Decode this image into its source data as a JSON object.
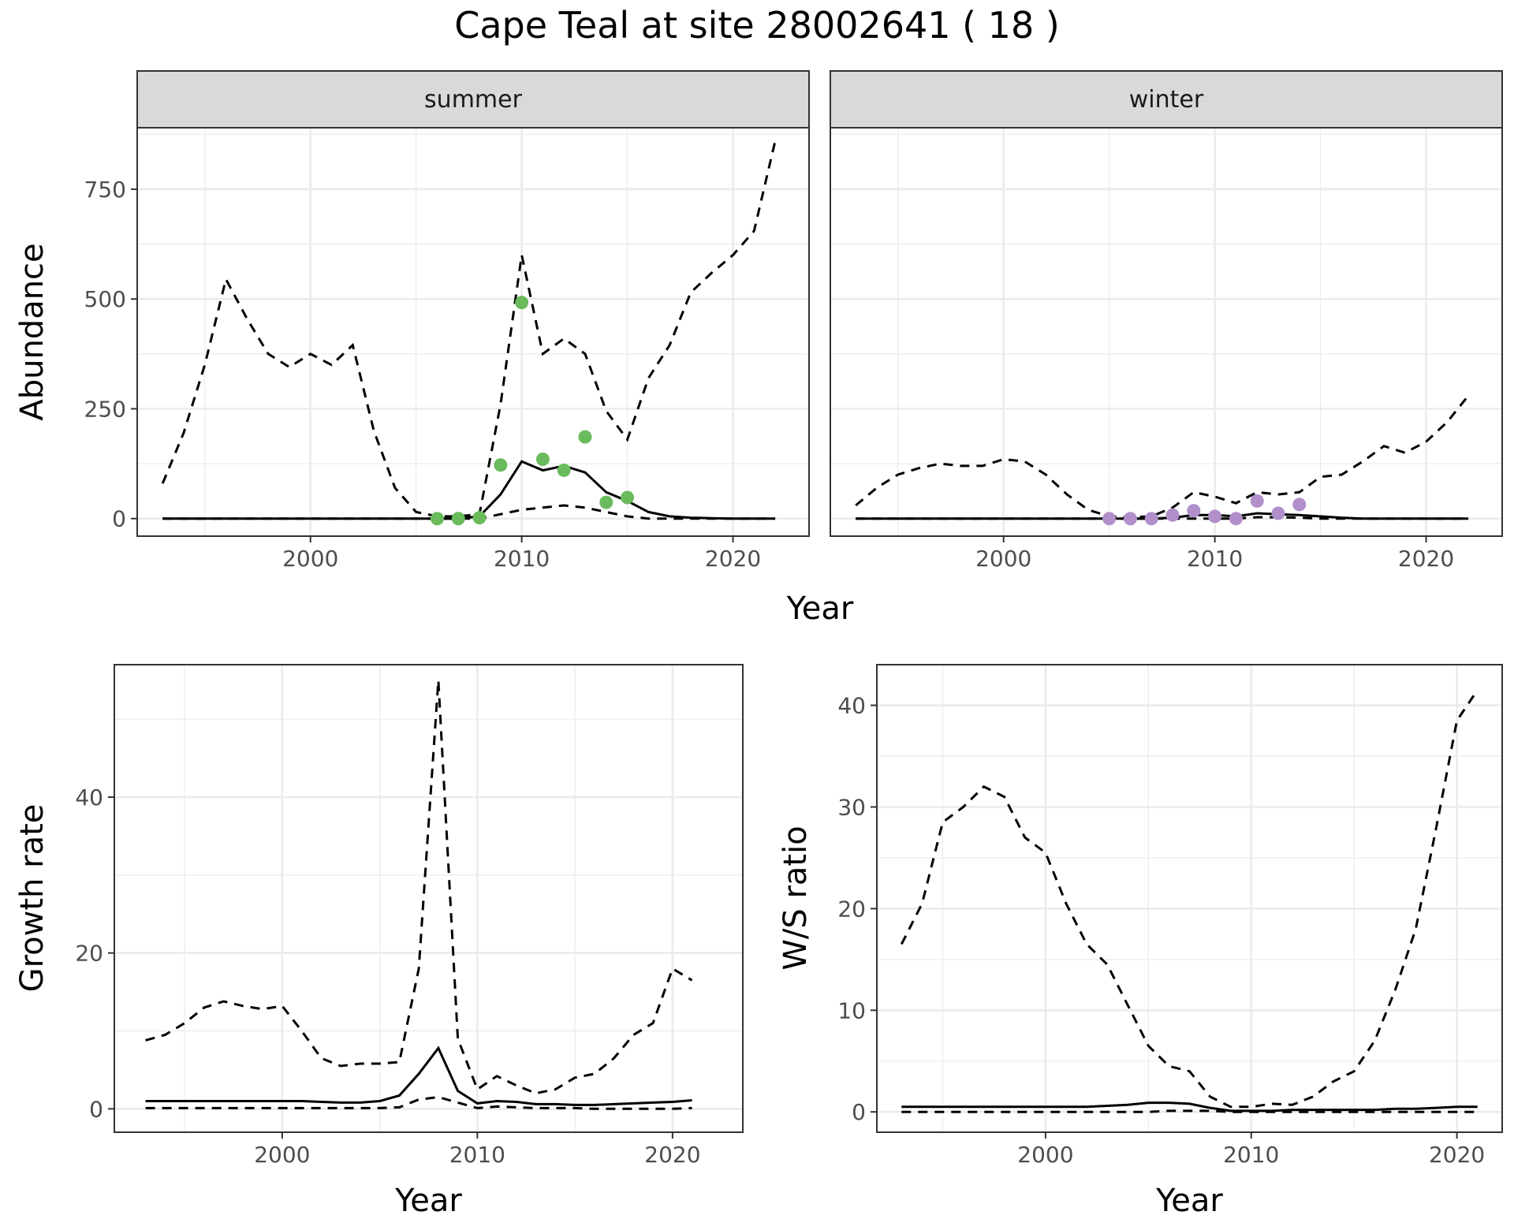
{
  "title": "Cape Teal at site 28002641 ( 18 )",
  "colors": {
    "summer_points": "#6abb5c",
    "winter_points": "#b08fca",
    "strip_fill": "#d9d9d9",
    "grid_major": "#ebebeb",
    "line": "#000000"
  },
  "chart_data": [
    {
      "type": "line",
      "facets": [
        "summer",
        "winter"
      ],
      "xlabel": "Year",
      "ylabel": "Abundance",
      "xlim": [
        1991.8,
        2023.6
      ],
      "ylim": [
        -40,
        890
      ],
      "xticks": [
        2000,
        2010,
        2020
      ],
      "yticks": [
        0,
        250,
        500,
        750
      ],
      "panels": [
        {
          "strip": "summer",
          "point_color": "#6abb5c",
          "x": [
            1993,
            1994,
            1995,
            1996,
            1997,
            1998,
            1999,
            2000,
            2001,
            2002,
            2003,
            2004,
            2005,
            2006,
            2007,
            2008,
            2009,
            2010,
            2011,
            2012,
            2013,
            2014,
            2015,
            2016,
            2017,
            2018,
            2019,
            2020,
            2021,
            2022
          ],
          "upper": [
            80,
            195,
            350,
            545,
            455,
            375,
            345,
            375,
            350,
            395,
            200,
            70,
            15,
            5,
            5,
            10,
            260,
            600,
            375,
            410,
            375,
            245,
            180,
            320,
            395,
            515,
            560,
            600,
            655,
            860
          ],
          "median": [
            0,
            0,
            0,
            0,
            0,
            0,
            0,
            0,
            0,
            0,
            0,
            0,
            0,
            0,
            0,
            5,
            55,
            130,
            110,
            120,
            105,
            60,
            40,
            15,
            5,
            2,
            1,
            0,
            0,
            0
          ],
          "lower": [
            0,
            0,
            0,
            0,
            0,
            0,
            0,
            0,
            0,
            0,
            0,
            0,
            0,
            0,
            0,
            0,
            10,
            20,
            25,
            30,
            25,
            15,
            5,
            0,
            0,
            0,
            0,
            0,
            0,
            0
          ],
          "points": [
            {
              "x": 2006,
              "y": 0
            },
            {
              "x": 2007,
              "y": 0
            },
            {
              "x": 2008,
              "y": 2
            },
            {
              "x": 2009,
              "y": 122
            },
            {
              "x": 2010,
              "y": 492
            },
            {
              "x": 2011,
              "y": 135
            },
            {
              "x": 2012,
              "y": 110
            },
            {
              "x": 2013,
              "y": 186
            },
            {
              "x": 2014,
              "y": 37
            },
            {
              "x": 2015,
              "y": 48
            }
          ]
        },
        {
          "strip": "winter",
          "point_color": "#b08fca",
          "x": [
            1993,
            1994,
            1995,
            1996,
            1997,
            1998,
            1999,
            2000,
            2001,
            2002,
            2003,
            2004,
            2005,
            2006,
            2007,
            2008,
            2009,
            2010,
            2011,
            2012,
            2013,
            2014,
            2015,
            2016,
            2017,
            2018,
            2019,
            2020,
            2021,
            2022
          ],
          "upper": [
            30,
            70,
            100,
            115,
            125,
            120,
            120,
            135,
            130,
            100,
            55,
            20,
            5,
            3,
            5,
            25,
            60,
            50,
            35,
            60,
            55,
            60,
            95,
            100,
            130,
            165,
            150,
            175,
            220,
            280
          ],
          "median": [
            0,
            0,
            0,
            0,
            0,
            0,
            0,
            0,
            0,
            0,
            0,
            0,
            0,
            0,
            0,
            2,
            8,
            8,
            5,
            12,
            10,
            8,
            5,
            2,
            0,
            0,
            0,
            0,
            0,
            0
          ],
          "lower": [
            0,
            0,
            0,
            0,
            0,
            0,
            0,
            0,
            0,
            0,
            0,
            0,
            0,
            0,
            0,
            0,
            0,
            0,
            0,
            3,
            3,
            2,
            0,
            0,
            0,
            0,
            0,
            0,
            0,
            0
          ],
          "points": [
            {
              "x": 2005,
              "y": 0
            },
            {
              "x": 2006,
              "y": 0
            },
            {
              "x": 2007,
              "y": 0
            },
            {
              "x": 2008,
              "y": 8
            },
            {
              "x": 2009,
              "y": 18
            },
            {
              "x": 2010,
              "y": 5
            },
            {
              "x": 2011,
              "y": 0
            },
            {
              "x": 2012,
              "y": 40
            },
            {
              "x": 2013,
              "y": 12
            },
            {
              "x": 2014,
              "y": 32
            }
          ]
        }
      ]
    },
    {
      "type": "line",
      "xlabel": "Year",
      "ylabel": "Growth rate",
      "xlim": [
        1991.4,
        2023.6
      ],
      "ylim": [
        -3,
        57
      ],
      "xticks": [
        2000,
        2010,
        2020
      ],
      "yticks": [
        0,
        20,
        40
      ],
      "x": [
        1993,
        1994,
        1995,
        1996,
        1997,
        1998,
        1999,
        2000,
        2001,
        2002,
        2003,
        2004,
        2005,
        2006,
        2007,
        2008,
        2009,
        2010,
        2011,
        2012,
        2013,
        2014,
        2015,
        2016,
        2017,
        2018,
        2019,
        2020,
        2021
      ],
      "upper": [
        8.8,
        9.5,
        11.0,
        13.0,
        13.8,
        13.2,
        12.8,
        13.2,
        10.0,
        6.5,
        5.5,
        5.8,
        5.8,
        6.0,
        18.0,
        55.0,
        9.0,
        2.5,
        4.2,
        3.0,
        2.0,
        2.5,
        4.0,
        4.5,
        6.5,
        9.5,
        11.0,
        18.0,
        16.5
      ],
      "median": [
        1.0,
        1.0,
        1.0,
        1.0,
        1.0,
        1.0,
        1.0,
        1.0,
        1.0,
        0.9,
        0.8,
        0.8,
        1.0,
        1.7,
        4.5,
        7.8,
        2.3,
        0.7,
        1.0,
        0.9,
        0.6,
        0.6,
        0.5,
        0.5,
        0.6,
        0.7,
        0.8,
        0.9,
        1.1
      ],
      "lower": [
        0.1,
        0.1,
        0.1,
        0.1,
        0.1,
        0.1,
        0.1,
        0.1,
        0.1,
        0.1,
        0.1,
        0.1,
        0.1,
        0.2,
        1.2,
        1.5,
        0.8,
        0.1,
        0.3,
        0.2,
        0.1,
        0.1,
        0.1,
        0.0,
        0.0,
        0.0,
        0.0,
        0.0,
        0.1
      ]
    },
    {
      "type": "line",
      "xlabel": "Year",
      "ylabel": "W/S ratio",
      "xlim": [
        1991.8,
        2022.2
      ],
      "ylim": [
        -2,
        44
      ],
      "xticks": [
        2000,
        2010,
        2020
      ],
      "yticks": [
        0,
        10,
        20,
        30,
        40
      ],
      "x": [
        1993,
        1994,
        1995,
        1996,
        1997,
        1998,
        1999,
        2000,
        2001,
        2002,
        2003,
        2004,
        2005,
        2006,
        2007,
        2008,
        2009,
        2010,
        2011,
        2012,
        2013,
        2014,
        2015,
        2016,
        2017,
        2018,
        2019,
        2020,
        2021
      ],
      "upper": [
        16.5,
        20.5,
        28.5,
        30.0,
        32.0,
        31.0,
        27.0,
        25.5,
        20.5,
        16.5,
        14.5,
        10.5,
        6.5,
        4.5,
        4.0,
        1.5,
        0.5,
        0.5,
        0.8,
        0.7,
        1.5,
        3.0,
        4.0,
        7.0,
        12.0,
        18.0,
        28.0,
        38.5,
        41.5
      ],
      "median": [
        0.5,
        0.5,
        0.5,
        0.5,
        0.5,
        0.5,
        0.5,
        0.5,
        0.5,
        0.5,
        0.6,
        0.7,
        0.9,
        0.9,
        0.8,
        0.4,
        0.1,
        0.1,
        0.1,
        0.2,
        0.2,
        0.2,
        0.2,
        0.2,
        0.3,
        0.3,
        0.4,
        0.5,
        0.5
      ],
      "lower": [
        0.0,
        0.0,
        0.0,
        0.0,
        0.0,
        0.0,
        0.0,
        0.0,
        0.0,
        0.0,
        0.0,
        0.0,
        0.0,
        0.1,
        0.1,
        0.1,
        0.0,
        0.0,
        0.0,
        0.0,
        0.0,
        0.0,
        0.0,
        0.0,
        0.0,
        0.0,
        0.0,
        0.0,
        0.0
      ]
    }
  ]
}
